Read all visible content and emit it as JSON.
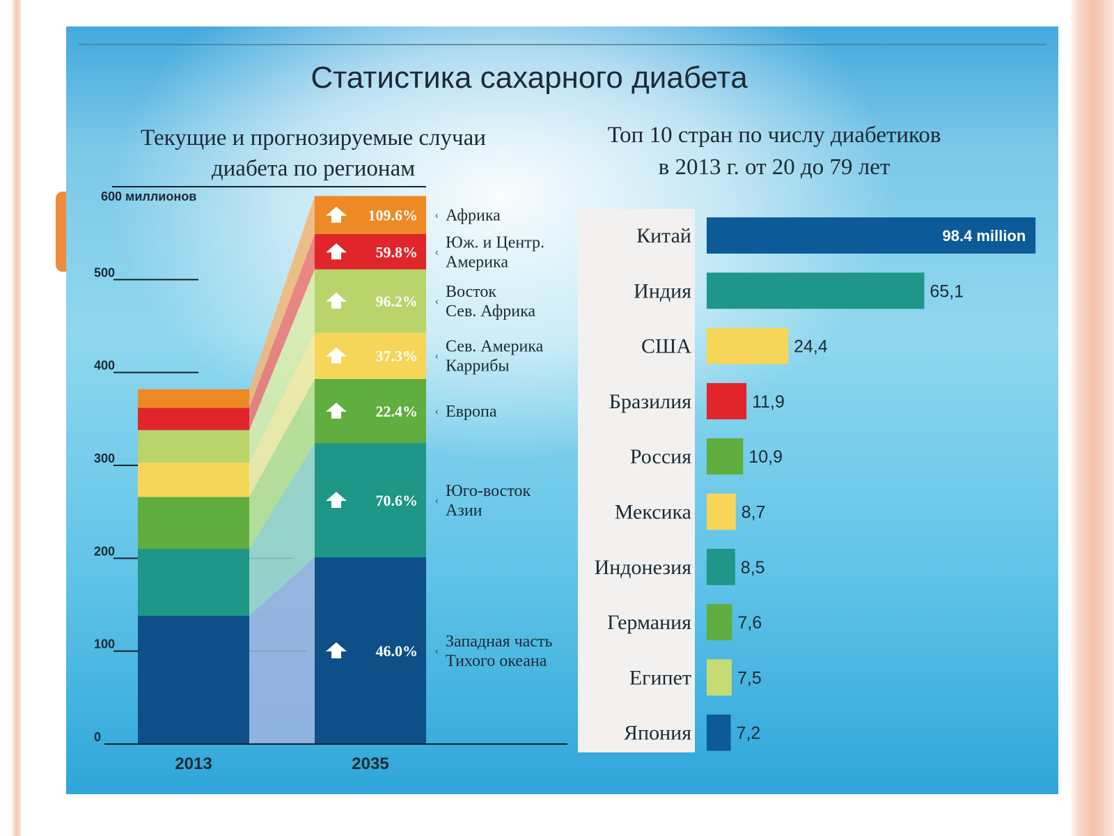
{
  "title": "Статистика сахарного диабета",
  "chart_data": [
    {
      "type": "bar",
      "stacked": true,
      "title_lines": [
        "Текущие и прогнозируемые случаи",
        "диабета по регионам"
      ],
      "yunit": "600 миллионов",
      "ylim": [
        0,
        600
      ],
      "yticks": [
        0,
        100,
        200,
        300,
        400,
        500
      ],
      "categories": [
        "2013",
        "2035"
      ],
      "series": [
        {
          "name": "Западная часть Тихого океана",
          "values": [
            138,
            201
          ],
          "growth": "46.0%",
          "color": "#0d4f86",
          "fade": "#9fb3de"
        },
        {
          "name": "Юго-восток Азии",
          "values": [
            72,
            123
          ],
          "growth": "70.6%",
          "color": "#1e9688",
          "fade": "#9ed3c4"
        },
        {
          "name": "Европа",
          "values": [
            56,
            69
          ],
          "growth": "22.4%",
          "color": "#5fae3f",
          "fade": "#bfe08d"
        },
        {
          "name": "Северная Америка и Карибы",
          "values": [
            37,
            50
          ],
          "growth": "37.3%",
          "color": "#f6d659",
          "fade": "#faec9e"
        },
        {
          "name": "Восток и Северная Африка",
          "values": [
            35,
            68
          ],
          "growth": "96.2%",
          "color": "#b8d46a",
          "fade": "#ddeca8"
        },
        {
          "name": "Южная и Центральная Америка",
          "values": [
            24,
            38
          ],
          "growth": "59.8%",
          "color": "#e0252b",
          "fade": "#f07470"
        },
        {
          "name": "Африка",
          "values": [
            20,
            41
          ],
          "growth": "109.6%",
          "color": "#ed8a25",
          "fade": "#f5b572"
        }
      ],
      "stack_labels": [
        "59.8%",
        "109.6%",
        "37.3%",
        "96.2%",
        "22.4%",
        "70.6%",
        "46.0%"
      ],
      "region_labels": [
        [
          "Юж. и Центр.",
          "Америка"
        ],
        [
          "Африка"
        ],
        [
          "Сев. Америка",
          "Каррибы"
        ],
        [
          "Восток",
          "Сев. Африка"
        ],
        [
          "Европа"
        ],
        [
          "Юго-восток",
          "Азии"
        ],
        [
          "Западная часть",
          "Тихого океана"
        ]
      ]
    },
    {
      "type": "bar",
      "orientation": "horizontal",
      "title_lines": [
        "Топ 10 стран по числу диабетиков",
        "в 2013 г. от 20 до 79 лет"
      ],
      "categories": [
        "Китай",
        "Индия",
        "США",
        "Бразилия",
        "Россия",
        "Мексика",
        "Индонезия",
        "Германия",
        "Египет",
        "Япония"
      ],
      "values": [
        98.4,
        65.1,
        24.4,
        11.9,
        10.9,
        8.7,
        8.5,
        7.6,
        7.5,
        7.2
      ],
      "value_labels": [
        "98.4 million",
        "65,1",
        "24,4",
        "11,9",
        "10,9",
        "8,7",
        "8,5",
        "7,6",
        "7,5",
        "7,2"
      ],
      "colors": [
        "#0d5a99",
        "#1e9688",
        "#f6d659",
        "#e0252b",
        "#5fae3f",
        "#f6d659",
        "#1e9688",
        "#5fae3f",
        "#c6dc73",
        "#0d5a99"
      ],
      "xlim": [
        0,
        100
      ]
    }
  ]
}
